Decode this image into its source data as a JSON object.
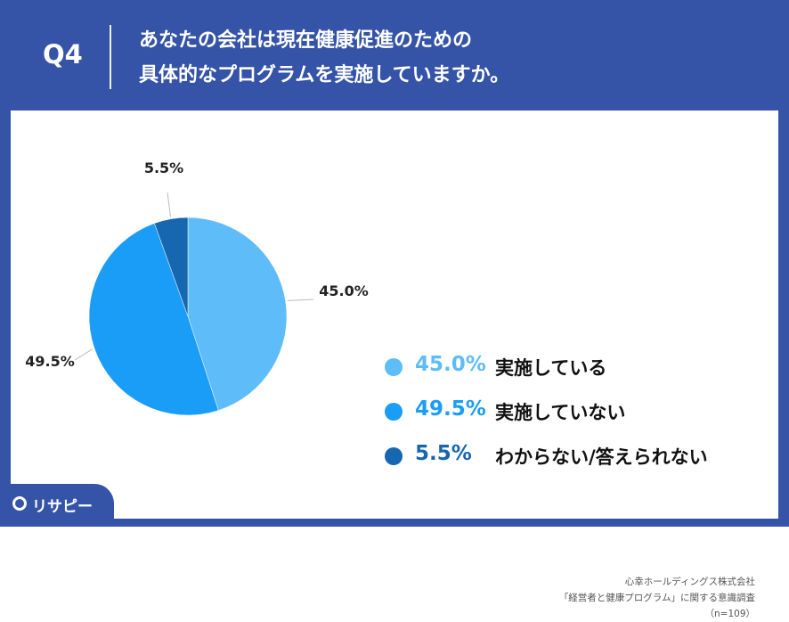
{
  "header": {
    "qnum": "Q4",
    "question_line1": "あなたの会社は現在健康促進のための",
    "question_line2": "具体的なプログラムを実施していますか。"
  },
  "chart_data": {
    "type": "pie",
    "slices": [
      {
        "label": "実施している",
        "value": 45.0,
        "value_label": "45.0%",
        "color": "#5ebcf9"
      },
      {
        "label": "実施していない",
        "value": 49.5,
        "value_label": "49.5%",
        "color": "#1a9df7"
      },
      {
        "label": "わからない/答えられない",
        "value": 5.5,
        "value_label": "5.5%",
        "color": "#1666b0"
      }
    ],
    "legend_position": "right"
  },
  "legend_pct_colors": [
    "#5ebcf9",
    "#1a9df7",
    "#1666b0"
  ],
  "source": {
    "line1": "心幸ホールディングス株式会社",
    "line2": "「経営者と健康プログラム」に関する意識調査",
    "line3": "（n=109）"
  },
  "logo": {
    "text": "リサピー"
  }
}
